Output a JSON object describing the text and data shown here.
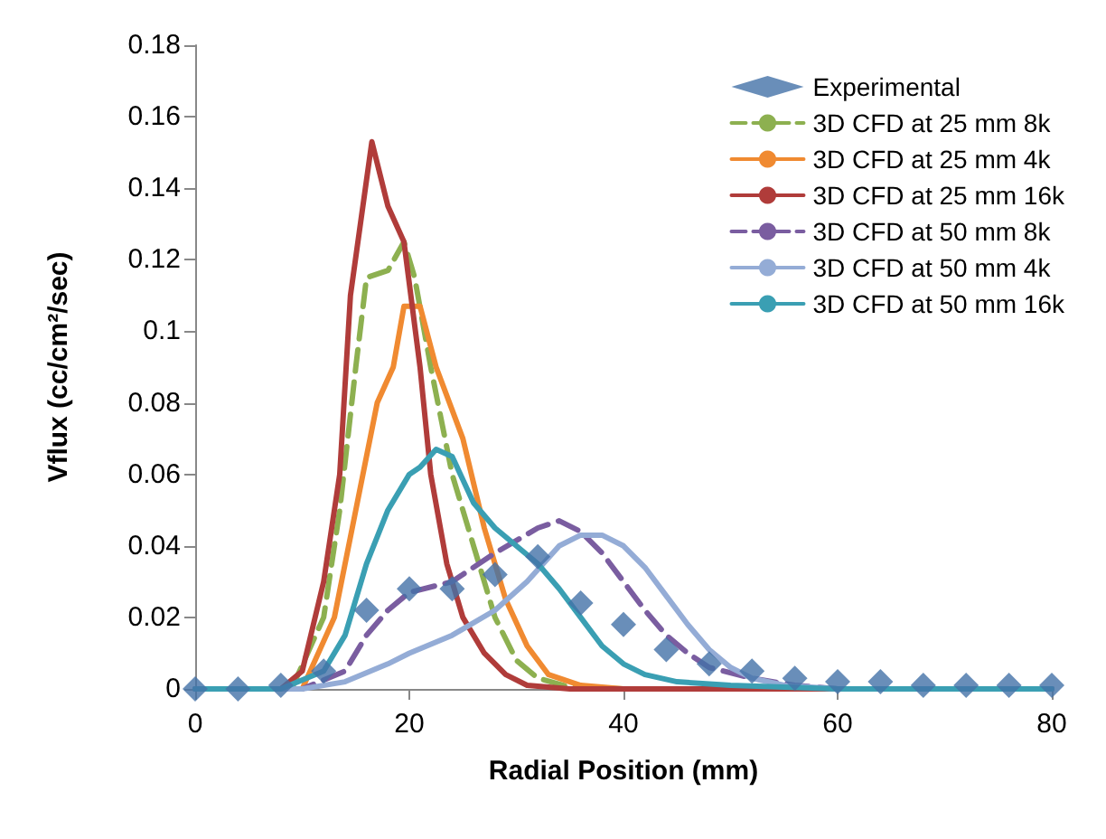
{
  "chart_data": {
    "type": "line",
    "xlabel": "Radial Position (mm)",
    "ylabel": "Vflux (cc/cm²/sec)",
    "xlim": [
      0,
      80
    ],
    "xticks": [
      0,
      20,
      40,
      60,
      80
    ],
    "ylim": [
      0,
      0.18
    ],
    "yticks": [
      0,
      0.02,
      0.04,
      0.06,
      0.08,
      0.1,
      0.12,
      0.14,
      0.16,
      0.18
    ],
    "grid": false,
    "legend": "top right",
    "series": [
      {
        "name": "Experimental",
        "type": "scatter",
        "marker": "diamond",
        "color": "#4372a8",
        "x": [
          0,
          4,
          8,
          12,
          16,
          20,
          24,
          28,
          32,
          36,
          40,
          44,
          48,
          52,
          56,
          60,
          64,
          68,
          72,
          76,
          80
        ],
        "values": [
          0,
          0,
          0.001,
          0.005,
          0.022,
          0.028,
          0.028,
          0.032,
          0.037,
          0.024,
          0.018,
          0.011,
          0.007,
          0.005,
          0.003,
          0.002,
          0.002,
          0.001,
          0.001,
          0.001,
          0.001
        ]
      },
      {
        "name": "3D CFD at 25 mm 8k",
        "color": "#8db050",
        "line_style": "dashed",
        "x": [
          0,
          9,
          12,
          13.5,
          15,
          16,
          18,
          19.5,
          20.5,
          22,
          24,
          26,
          28,
          30,
          32,
          35,
          40,
          80
        ],
        "values": [
          0,
          0,
          0.02,
          0.05,
          0.09,
          0.115,
          0.117,
          0.125,
          0.115,
          0.09,
          0.06,
          0.04,
          0.02,
          0.008,
          0.003,
          0.0005,
          0,
          0
        ]
      },
      {
        "name": "3D CFD at 25 mm 4k",
        "color": "#f08a31",
        "line_style": "solid",
        "x": [
          0,
          10,
          13,
          15,
          17,
          18.5,
          19.5,
          21,
          22.5,
          25,
          27,
          29,
          31,
          33,
          36,
          40,
          80
        ],
        "values": [
          0,
          0,
          0.02,
          0.05,
          0.08,
          0.09,
          0.107,
          0.107,
          0.09,
          0.07,
          0.045,
          0.025,
          0.012,
          0.004,
          0.001,
          0,
          0
        ]
      },
      {
        "name": "3D CFD at 25 mm 16k",
        "color": "#b03c3a",
        "line_style": "solid",
        "x": [
          0,
          8,
          10,
          12,
          13.5,
          14.5,
          16.5,
          18,
          19.5,
          21,
          22,
          23.5,
          25,
          27,
          29,
          31,
          35,
          80
        ],
        "values": [
          0,
          0,
          0.005,
          0.03,
          0.06,
          0.11,
          0.153,
          0.135,
          0.125,
          0.09,
          0.06,
          0.035,
          0.02,
          0.01,
          0.004,
          0.001,
          0,
          0
        ]
      },
      {
        "name": "3D CFD at 50 mm 8k",
        "color": "#7a5da0",
        "line_style": "dashed",
        "x": [
          0,
          10,
          14,
          16,
          18,
          20,
          24,
          28,
          32,
          34,
          36,
          38,
          40,
          42,
          44,
          46,
          48,
          52,
          56,
          60,
          80
        ],
        "values": [
          0,
          0,
          0.005,
          0.015,
          0.022,
          0.027,
          0.03,
          0.038,
          0.045,
          0.047,
          0.044,
          0.038,
          0.03,
          0.022,
          0.015,
          0.01,
          0.006,
          0.003,
          0.001,
          0,
          0
        ]
      },
      {
        "name": "3D CFD at 50 mm 4k",
        "color": "#94acd6",
        "line_style": "solid",
        "x": [
          0,
          10,
          14,
          18,
          20,
          24,
          28,
          31,
          34,
          36,
          38,
          40,
          42,
          44,
          46,
          48,
          50,
          52,
          55,
          60,
          80
        ],
        "values": [
          0,
          0,
          0.002,
          0.007,
          0.01,
          0.015,
          0.022,
          0.03,
          0.04,
          0.043,
          0.043,
          0.04,
          0.034,
          0.026,
          0.018,
          0.011,
          0.006,
          0.003,
          0.001,
          0,
          0
        ]
      },
      {
        "name": "3D CFD at 50 mm 16k",
        "color": "#3a9fb3",
        "line_style": "solid",
        "x": [
          0,
          8,
          12,
          14,
          16,
          18,
          20,
          21,
          22.5,
          24,
          26,
          28,
          30,
          32,
          34,
          36,
          38,
          40,
          42,
          45,
          50,
          55,
          60,
          80
        ],
        "values": [
          0,
          0,
          0.005,
          0.015,
          0.035,
          0.05,
          0.06,
          0.062,
          0.067,
          0.065,
          0.052,
          0.045,
          0.04,
          0.035,
          0.028,
          0.02,
          0.012,
          0.007,
          0.004,
          0.002,
          0.001,
          0.0005,
          0,
          0
        ]
      }
    ]
  }
}
